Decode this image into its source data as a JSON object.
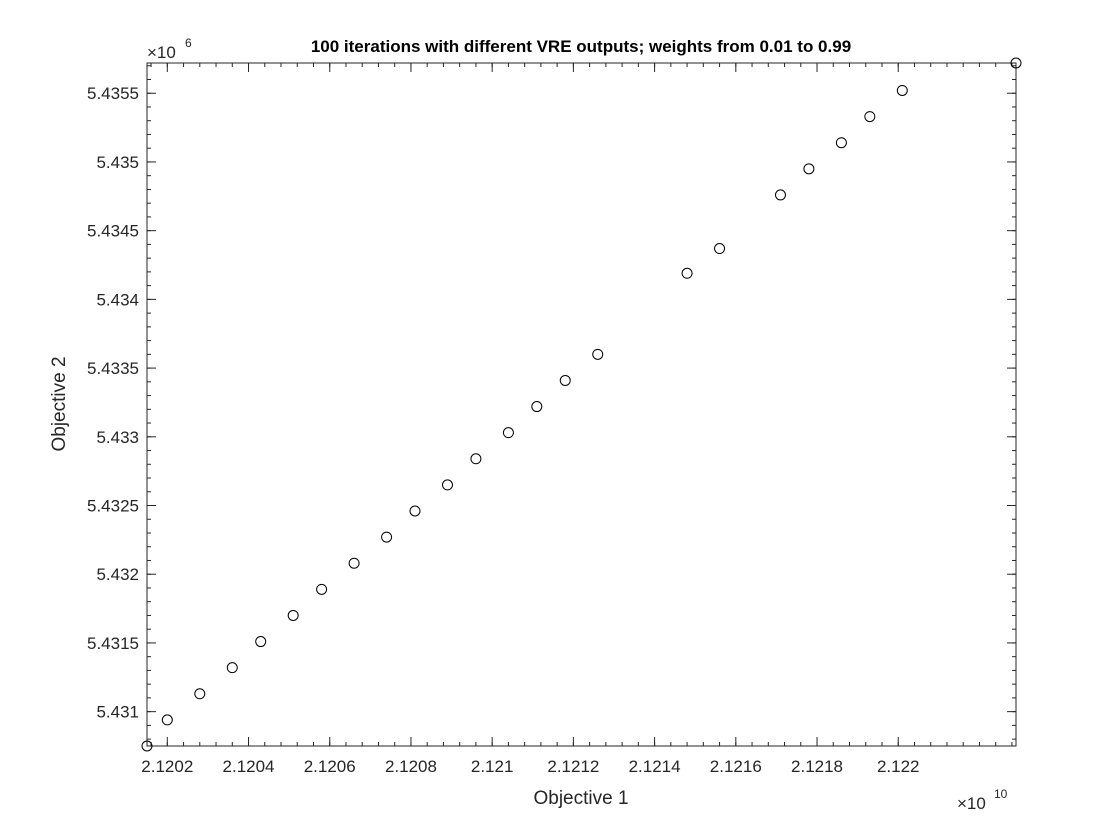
{
  "chart_data": {
    "type": "scatter",
    "title": "100 iterations with different VRE outputs; weights from 0.01 to 0.99",
    "xlabel": "Objective 1",
    "ylabel": "Objective 2",
    "x_multiplier": {
      "base": "×10",
      "exponent": "10"
    },
    "y_multiplier": {
      "base": "×10",
      "exponent": "6"
    },
    "xlim": [
      2.12015,
      2.12229
    ],
    "ylim": [
      5.43075,
      5.43572
    ],
    "x_ticks": [
      2.1202,
      2.1204,
      2.1206,
      2.1208,
      2.121,
      2.1212,
      2.1214,
      2.1216,
      2.1218,
      2.122
    ],
    "x_tick_labels": [
      "2.1202",
      "2.1204",
      "2.1206",
      "2.1208",
      "2.121",
      "2.1212",
      "2.1214",
      "2.1216",
      "2.1218",
      "2.122"
    ],
    "y_ticks": [
      5.431,
      5.4315,
      5.432,
      5.4325,
      5.433,
      5.4335,
      5.434,
      5.4345,
      5.435,
      5.4355
    ],
    "y_tick_labels": [
      "5.431",
      "5.4315",
      "5.432",
      "5.4325",
      "5.433",
      "5.4335",
      "5.434",
      "5.4345",
      "5.435",
      "5.4355"
    ],
    "grid": false,
    "marker": "open-circle",
    "color": "#000000",
    "x": [
      2.12015,
      2.1202,
      2.12028,
      2.12036,
      2.12043,
      2.12051,
      2.12058,
      2.12066,
      2.12074,
      2.12081,
      2.12089,
      2.12096,
      2.12104,
      2.12111,
      2.12118,
      2.12126,
      2.12148,
      2.12156,
      2.12171,
      2.12178,
      2.12186,
      2.12193,
      2.12201,
      2.12229
    ],
    "y": [
      5.43075,
      5.43094,
      5.43113,
      5.43132,
      5.43151,
      5.4317,
      5.43189,
      5.43208,
      5.43227,
      5.43246,
      5.43265,
      5.43284,
      5.43303,
      5.43322,
      5.43341,
      5.4336,
      5.43419,
      5.43437,
      5.43476,
      5.43495,
      5.43514,
      5.43533,
      5.43552,
      5.43572
    ]
  }
}
